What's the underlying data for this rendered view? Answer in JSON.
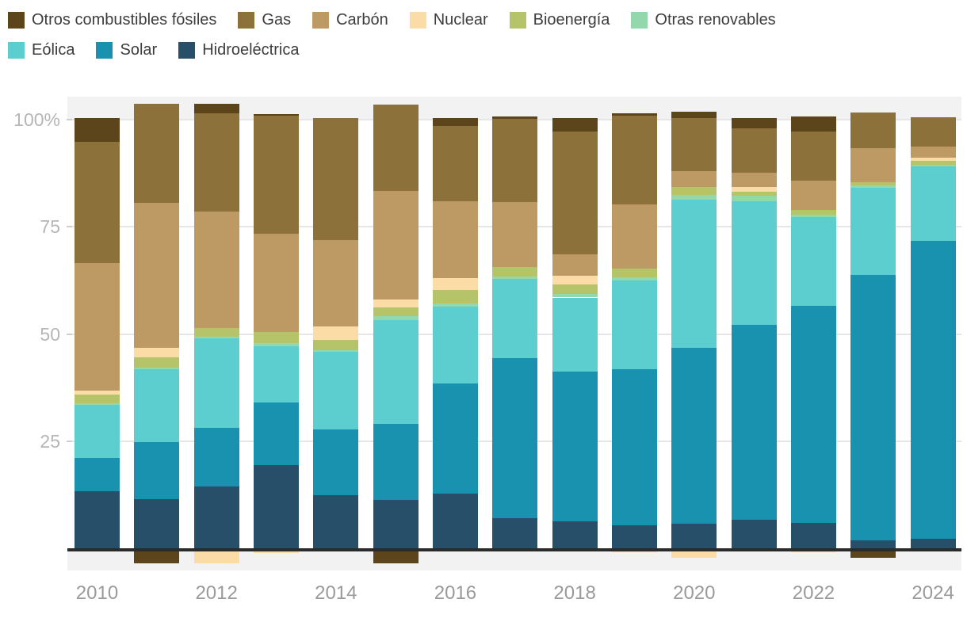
{
  "chart_data": {
    "type": "bar",
    "stacked": true,
    "unit": "%",
    "x": [
      "2010",
      "2011",
      "2012",
      "2013",
      "2014",
      "2015",
      "2016",
      "2017",
      "2018",
      "2019",
      "2020",
      "2021",
      "2022",
      "2023",
      "2024"
    ],
    "x_axis": {
      "shown_tick_labels": [
        "2010",
        "2012",
        "2014",
        "2016",
        "2018",
        "2020",
        "2022",
        "2024"
      ],
      "shown_tick_indexes": [
        0,
        2,
        4,
        6,
        8,
        10,
        12,
        14
      ]
    },
    "y_axis": {
      "ticks": [
        {
          "label": "100%",
          "value": 100
        },
        {
          "label": "75",
          "value": 75
        },
        {
          "label": "50",
          "value": 50
        },
        {
          "label": "25",
          "value": 25
        }
      ],
      "gridlines": true,
      "overflow_band_above": 100,
      "overflow_band_below": 0
    },
    "series": [
      {
        "name": "Hidroeléctrica",
        "color": "#284f69",
        "values": [
          13.4,
          11.4,
          14.5,
          19.5,
          12.4,
          11.3,
          12.8,
          7.0,
          6.3,
          5.3,
          5.7,
          6.7,
          6.0,
          1.9,
          2.3
        ]
      },
      {
        "name": "Solar",
        "color": "#1892ae",
        "values": [
          7.7,
          13.4,
          13.6,
          14.6,
          15.3,
          17.8,
          25.6,
          37.4,
          34.9,
          36.4,
          41.0,
          45.4,
          50.6,
          61.9,
          69.5
        ]
      },
      {
        "name": "Eólica",
        "color": "#5dcecf",
        "values": [
          12.4,
          17.0,
          20.8,
          13.1,
          18.1,
          24.2,
          18.0,
          18.4,
          17.3,
          20.8,
          34.7,
          28.9,
          20.7,
          20.3,
          17.3
        ]
      },
      {
        "name": "Otras renovables",
        "color": "#93d8ad",
        "values": [
          0.3,
          0.4,
          0.4,
          0.7,
          0.5,
          0.8,
          0.8,
          0.6,
          0.8,
          0.8,
          1.0,
          1.3,
          0.6,
          0.5,
          0.4
        ]
      },
      {
        "name": "Bioenergía",
        "color": "#b5c468",
        "values": [
          2.1,
          2.3,
          2.0,
          2.6,
          2.3,
          2.0,
          3.1,
          2.3,
          2.3,
          2.0,
          1.8,
          0.9,
          1.1,
          0.8,
          0.8
        ]
      },
      {
        "name": "Nuclear",
        "color": "#fcdca6",
        "values": [
          0.9,
          2.3,
          -3.5,
          -1.2,
          3.1,
          2.0,
          2.7,
          0.0,
          1.9,
          -1.0,
          -2.2,
          1.0,
          -0.9,
          0.0,
          0.8
        ]
      },
      {
        "name": "Carbón",
        "color": "#bd9a64",
        "values": [
          29.7,
          33.8,
          27.3,
          22.9,
          20.2,
          25.2,
          18.0,
          15.0,
          5.0,
          15.0,
          3.8,
          3.5,
          6.7,
          8.0,
          2.6
        ]
      },
      {
        "name": "Gas",
        "color": "#8d713b",
        "values": [
          28.4,
          23.1,
          22.9,
          27.5,
          28.5,
          20.3,
          17.6,
          19.4,
          28.8,
          20.7,
          12.3,
          10.3,
          11.5,
          8.3,
          6.8
        ]
      },
      {
        "name": "Otros combustibles fósiles",
        "color": "#5c441b",
        "values": [
          5.4,
          -3.5,
          2.2,
          0.4,
          0.0,
          -3.5,
          1.8,
          0.6,
          3.1,
          0.4,
          1.6,
          2.3,
          3.5,
          -2.2,
          0.0
        ]
      }
    ],
    "legend": {
      "row1": [
        "Otros combustibles fósiles",
        "Gas",
        "Carbón",
        "Nuclear",
        "Bioenergía",
        "Otras renovables"
      ],
      "row2": [
        "Eólica",
        "Solar",
        "Hidroeléctrica"
      ]
    },
    "style": {
      "plot_background": "#ffffff",
      "overflow_band_color": "#f2f2f2",
      "gridline_color": "#e6e6e6",
      "zero_axis_color": "#2b2b2b",
      "y_label_color": "#b6b6b6",
      "x_label_color": "#9a9a9a",
      "legend_text_color": "#3d3d3d"
    }
  }
}
